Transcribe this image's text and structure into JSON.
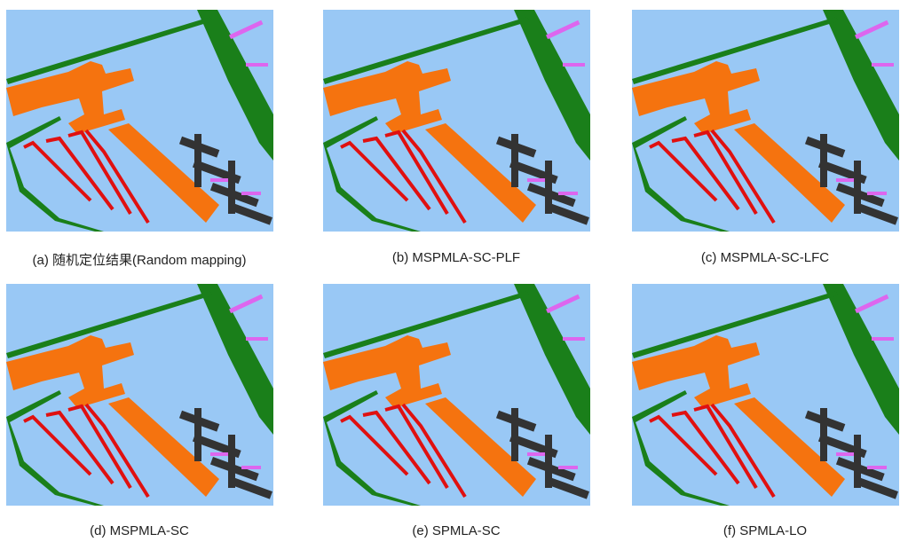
{
  "panels": [
    {
      "caption": "(a) 随机定位结果(Random mapping)"
    },
    {
      "caption": "(b) MSPMLA-SC-PLF"
    },
    {
      "caption": "(c) MSPMLA-SC-LFC"
    },
    {
      "caption": "(d) MSPMLA-SC"
    },
    {
      "caption": "(e) SPMLA-SC"
    },
    {
      "caption": "(f) SPMLA-LO"
    }
  ]
}
